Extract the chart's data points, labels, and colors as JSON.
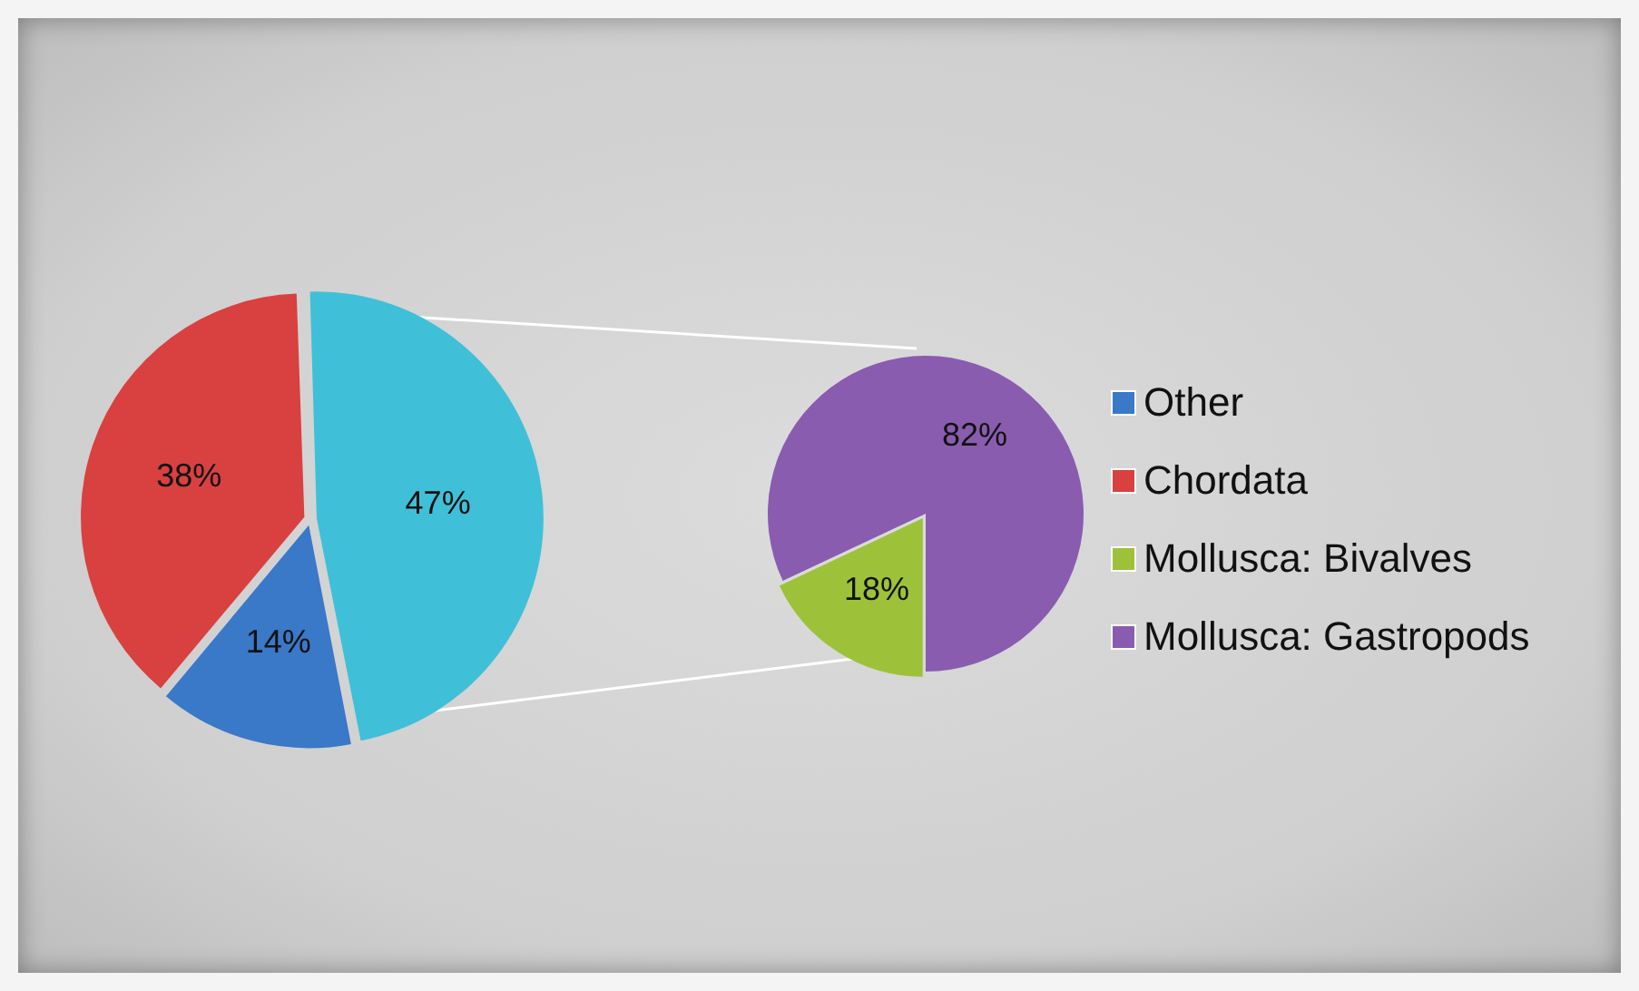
{
  "chart_data": [
    {
      "type": "pie",
      "categories": [
        "Other",
        "Chordata",
        null
      ],
      "values": [
        14,
        38,
        47
      ],
      "colors": [
        "#3a78c8",
        "#d94040",
        "#3fc0d8"
      ],
      "value_labels": [
        "14%",
        "38%",
        "47%"
      ],
      "legend": "right"
    },
    {
      "type": "pie",
      "categories": [
        "Mollusca: Bivalves",
        "Mollusca: Gastropods"
      ],
      "values": [
        18,
        82
      ],
      "colors": [
        "#9dc23a",
        "#8a5cb0"
      ],
      "value_labels": [
        "18%",
        "82%"
      ],
      "legend": "right"
    }
  ]
}
